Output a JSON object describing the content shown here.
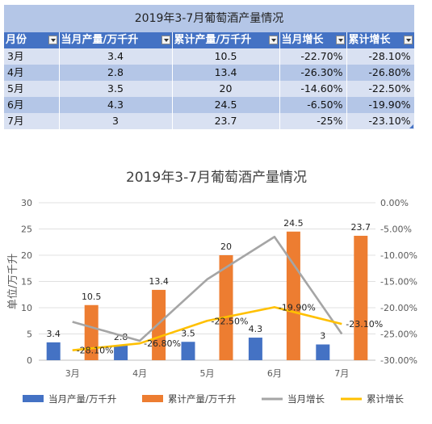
{
  "table": {
    "title": "2019年3-7月葡萄酒产量情况",
    "headers": [
      "月份",
      "当月产量/万千升",
      "累计产量/万千升",
      "当月增长",
      "累计增长"
    ],
    "rows": [
      [
        "3月",
        "3.4",
        "10.5",
        "-22.70%",
        "-28.10%"
      ],
      [
        "4月",
        "2.8",
        "13.4",
        "-26.30%",
        "-26.80%"
      ],
      [
        "5月",
        "3.5",
        "20",
        "-14.60%",
        "-22.50%"
      ],
      [
        "6月",
        "4.3",
        "24.5",
        "-6.50%",
        "-19.90%"
      ],
      [
        "7月",
        "3",
        "23.7",
        "-25%",
        "-23.10%"
      ]
    ]
  },
  "chart_data": {
    "type": "bar",
    "title": "2019年3-7月葡萄酒产量情况",
    "categories": [
      "3月",
      "4月",
      "5月",
      "6月",
      "7月"
    ],
    "ylabel": "单位/万千升",
    "ylim": [
      0,
      30
    ],
    "yticks": [
      "0",
      "5",
      "10",
      "15",
      "20",
      "25",
      "30"
    ],
    "y2lim": [
      -30,
      0
    ],
    "y2ticks": [
      "-30.00%",
      "-25.00%",
      "-20.00%",
      "-15.00%",
      "-10.00%",
      "-5.00%",
      "0.00%"
    ],
    "grid": true,
    "legend": "bottom",
    "series": [
      {
        "name": "当月产量/万千升",
        "kind": "bar",
        "axis": "left",
        "color": "#4472c4",
        "values": [
          3.4,
          2.8,
          3.5,
          4.3,
          3
        ],
        "labels": [
          "3.4",
          "2.8",
          "3.5",
          "4.3",
          "3"
        ]
      },
      {
        "name": "累计产量/万千升",
        "kind": "bar",
        "axis": "left",
        "color": "#ed7d31",
        "values": [
          10.5,
          13.4,
          20,
          24.5,
          23.7
        ],
        "labels": [
          "10.5",
          "13.4",
          "20",
          "24.5",
          "23.7"
        ]
      },
      {
        "name": "当月增长",
        "kind": "line",
        "axis": "right",
        "color": "#a5a5a5",
        "values": [
          -22.7,
          -26.3,
          -14.6,
          -6.5,
          -25
        ],
        "labels": []
      },
      {
        "name": "累计增长",
        "kind": "line",
        "axis": "right",
        "color": "#ffc000",
        "values": [
          -28.1,
          -26.8,
          -22.5,
          -19.9,
          -23.1
        ],
        "labels": [
          "-28.10%",
          "-26.80%",
          "-22.50%",
          "-19.90%",
          "-23.10%"
        ]
      }
    ]
  }
}
